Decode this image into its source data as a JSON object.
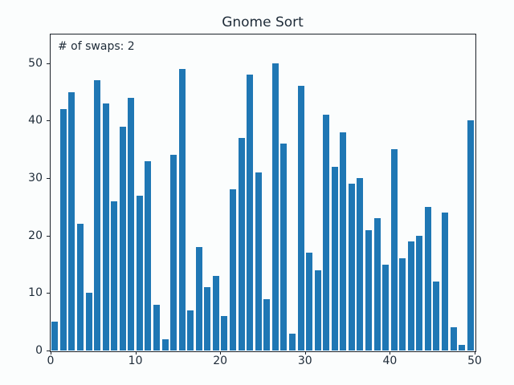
{
  "figure": {
    "title": "Gnome Sort",
    "annotation": "# of swaps: 2"
  },
  "chart_data": {
    "type": "bar",
    "title": "Gnome Sort",
    "annotation": "# of swaps: 2",
    "values": [
      5,
      42,
      45,
      22,
      10,
      47,
      43,
      26,
      39,
      44,
      27,
      33,
      8,
      2,
      34,
      49,
      7,
      18,
      11,
      13,
      6,
      28,
      37,
      48,
      31,
      9,
      50,
      36,
      3,
      46,
      17,
      14,
      41,
      32,
      38,
      29,
      30,
      21,
      23,
      15,
      35,
      16,
      19,
      20,
      25,
      12,
      24,
      4,
      1,
      40
    ],
    "xlabel": "",
    "ylabel": "",
    "xlim": [
      0,
      50
    ],
    "ylim": [
      0,
      55
    ],
    "xticks": [
      0,
      10,
      20,
      30,
      40,
      50
    ],
    "yticks": [
      0,
      10,
      20,
      30,
      40,
      50
    ],
    "grid": false,
    "legend": false,
    "colors": {
      "bar": "#1f77b4",
      "background": "#fbfdfd",
      "text": "#1e2b38",
      "spine": "#1c222a"
    }
  }
}
